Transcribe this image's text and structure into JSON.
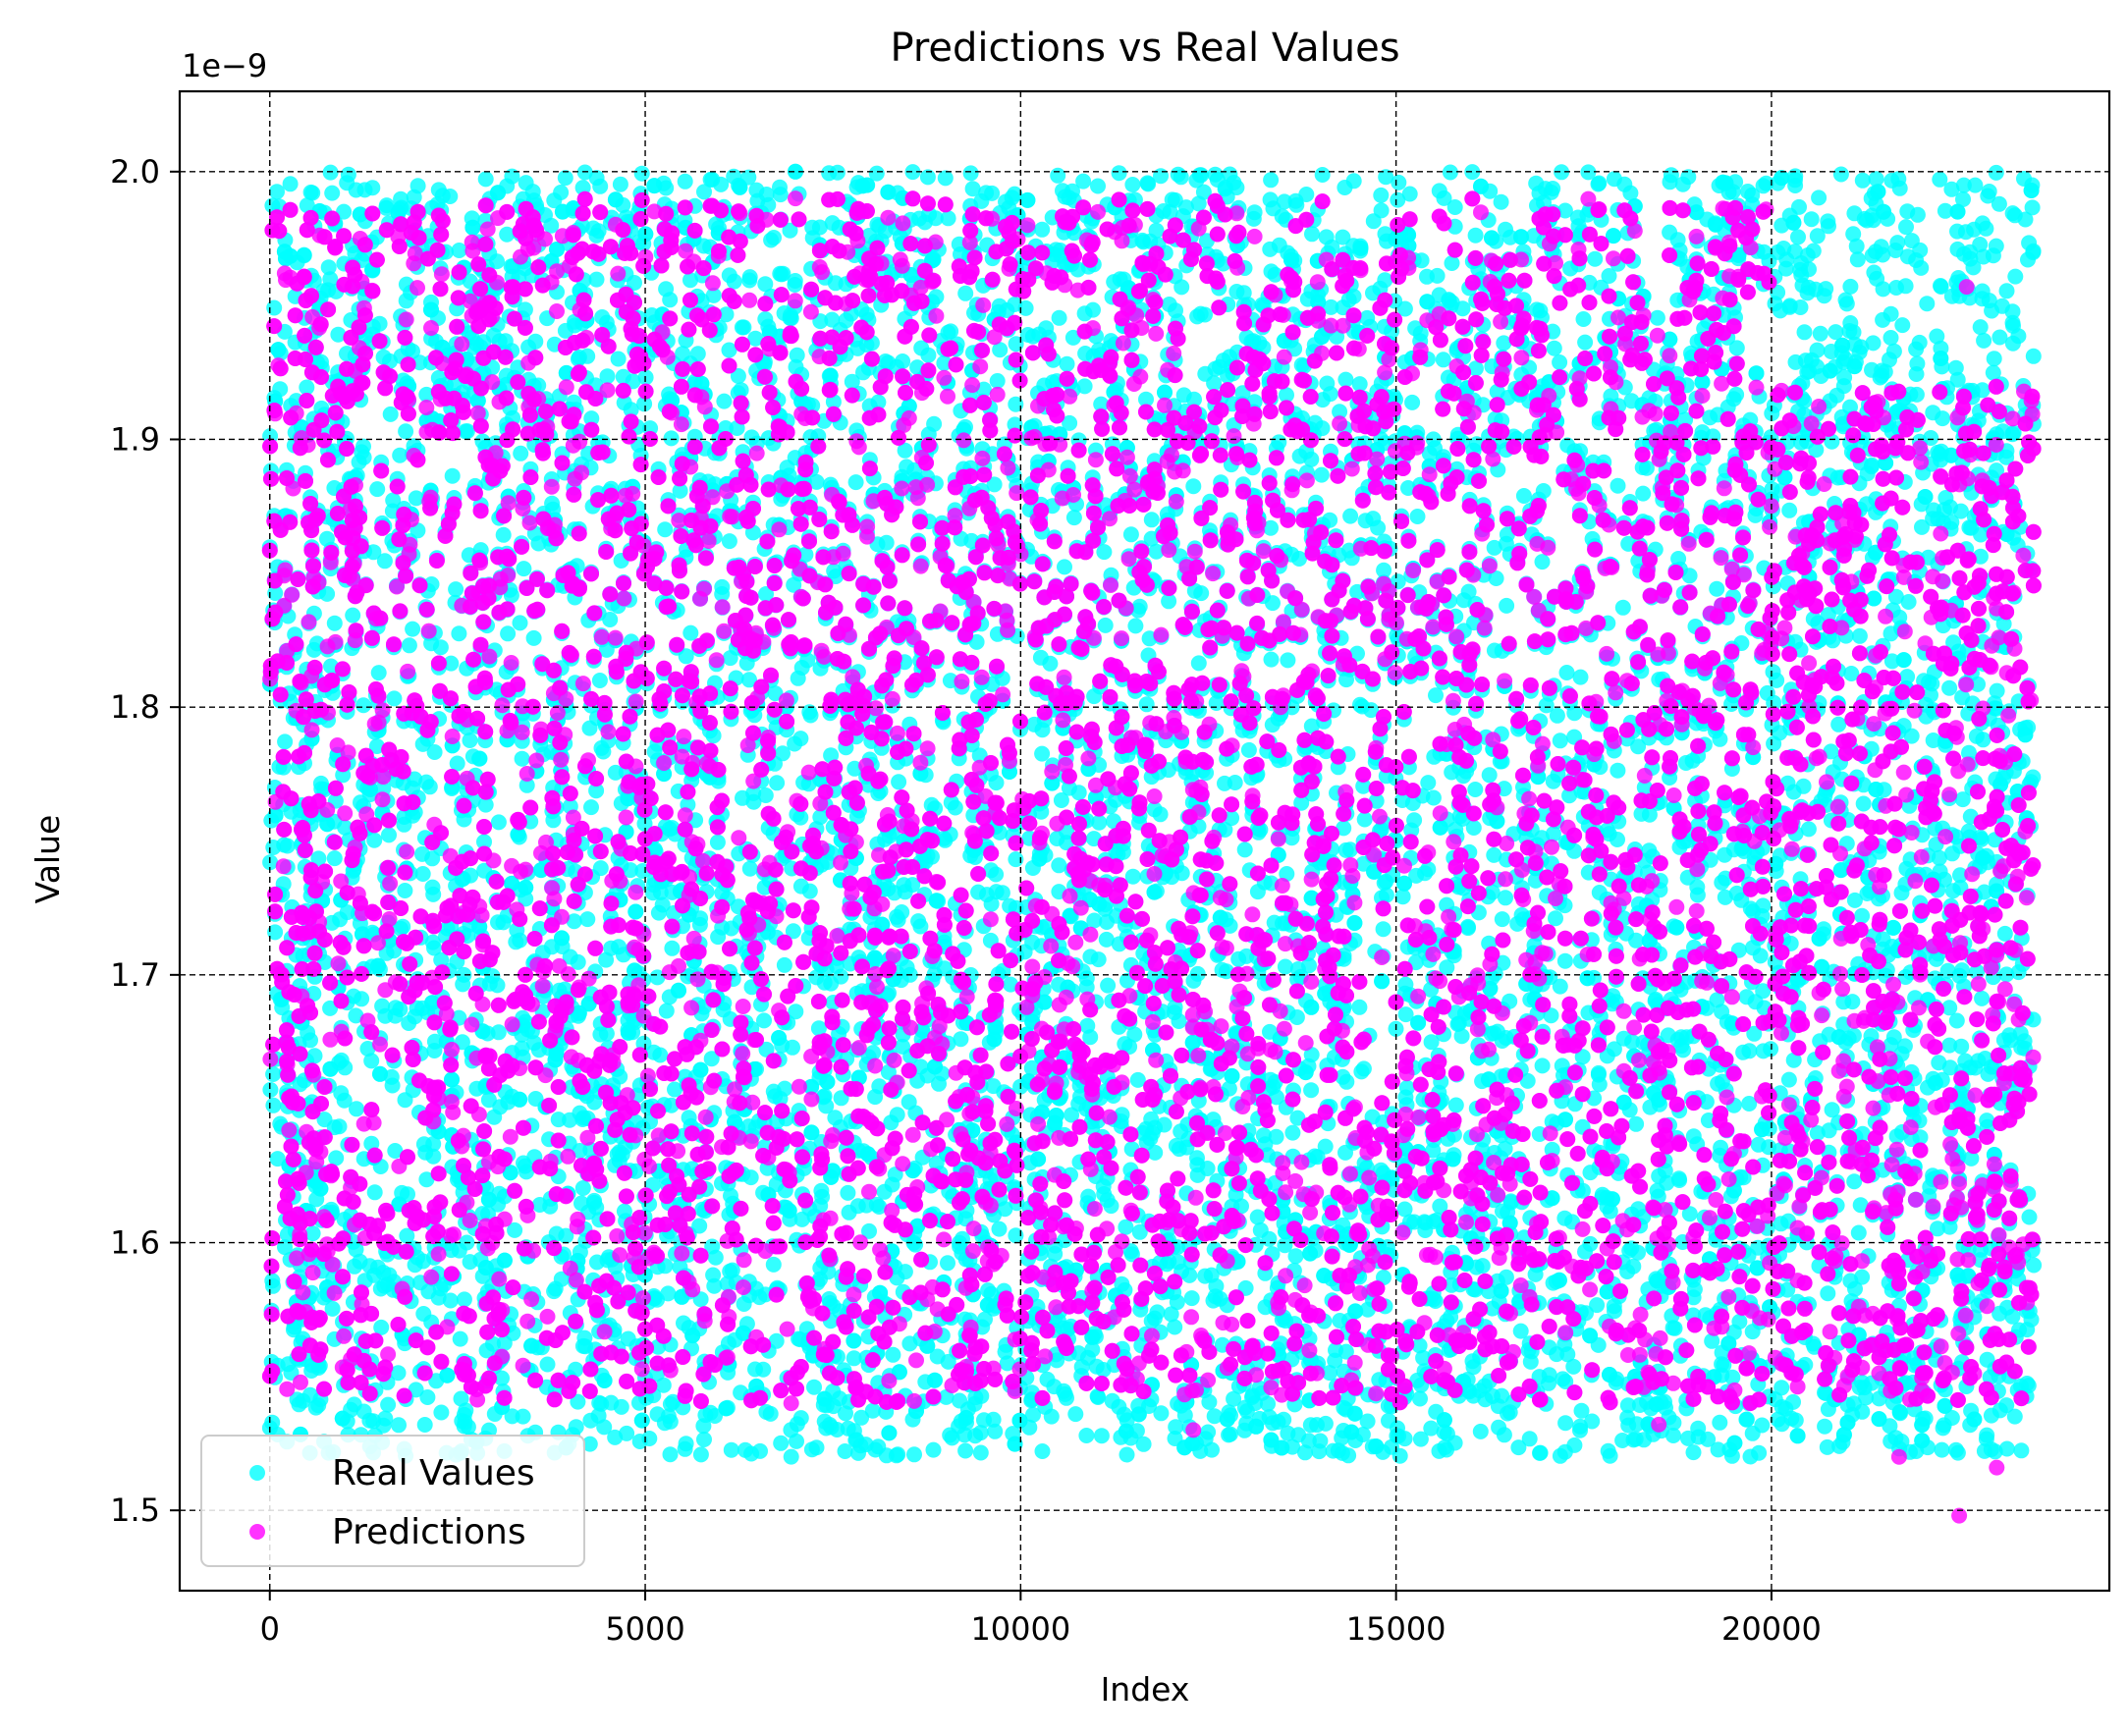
{
  "chart_data": {
    "type": "scatter",
    "title": "Predictions vs Real Values",
    "xlabel": "Index",
    "ylabel": "Value",
    "y_offset_text": "1e−9",
    "xlim": [
      -1200,
      24500
    ],
    "ylim": [
      1.47,
      2.03
    ],
    "y_scale_multiplier": 1e-09,
    "x_ticks": [
      0,
      5000,
      10000,
      15000,
      20000
    ],
    "x_tick_labels": [
      "0",
      "5000",
      "10000",
      "15000",
      "20000"
    ],
    "y_ticks": [
      1.5,
      1.6,
      1.7,
      1.8,
      1.9,
      2.0
    ],
    "y_tick_labels": [
      "1.5",
      "1.6",
      "1.7",
      "1.8",
      "1.9",
      "2.0"
    ],
    "grid": true,
    "legend_position": "lower-left",
    "series": [
      {
        "name": "Real Values",
        "color": "#00ffff",
        "x_range": [
          0,
          23500
        ],
        "y_range": [
          1.52,
          2.0
        ],
        "approx_points": 23500
      },
      {
        "name": "Predictions",
        "color": "#ff00ff",
        "x_range": [
          0,
          23500
        ],
        "y_range": [
          1.54,
          1.99
        ],
        "y_range_after_20000": [
          1.54,
          1.92
        ],
        "outliers": [
          [
            12300,
            1.53
          ],
          [
            18500,
            1.532
          ],
          [
            21700,
            1.52
          ],
          [
            22500,
            1.498
          ],
          [
            23000,
            1.516
          ],
          [
            22600,
            1.957
          ]
        ],
        "approx_points": 23500
      }
    ]
  }
}
